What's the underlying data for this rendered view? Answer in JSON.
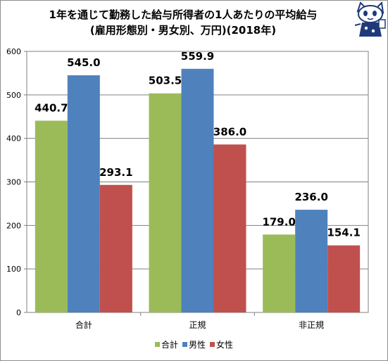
{
  "title_line1": "1年を通じて勤務した給与所得者の1人あたりの平均給与",
  "title_line2": "(雇用形態別・男女別、万円)(2018年)",
  "mascot": "cat-mascot-logo",
  "colors": {
    "合計": "#9bbb59",
    "男性": "#4f81bd",
    "女性": "#c0504d",
    "grid": "#808080",
    "plot_border": "#808080"
  },
  "chart_data": {
    "type": "bar",
    "title": "1年を通じて勤務した給与所得者の1人あたりの平均給与 (雇用形態別・男女別、万円)(2018年)",
    "categories": [
      "合計",
      "正規",
      "非正規"
    ],
    "series": [
      {
        "name": "合計",
        "values": [
          440.7,
          503.5,
          179.0
        ],
        "labels": [
          "440.7",
          "503.5",
          "179.0"
        ]
      },
      {
        "name": "男性",
        "values": [
          545.0,
          559.9,
          236.0
        ],
        "labels": [
          "545.0",
          "559.9",
          "236.0"
        ]
      },
      {
        "name": "女性",
        "values": [
          293.1,
          386.0,
          154.1
        ],
        "labels": [
          "293.1",
          "386.0",
          "154.1"
        ]
      }
    ],
    "ylim": [
      0,
      600
    ],
    "yticks": [
      0,
      100,
      200,
      300,
      400,
      500,
      600
    ],
    "grid": true,
    "legend": "bottom"
  }
}
